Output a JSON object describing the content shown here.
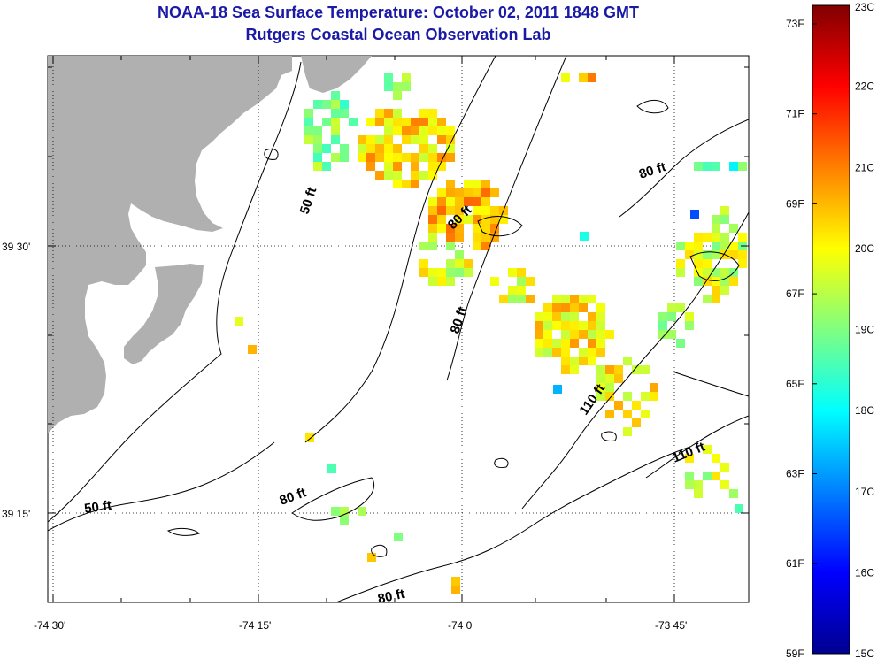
{
  "header": {
    "title_line1": "NOAA-18 Sea Surface Temperature:  October 02, 2011 1848 GMT",
    "title_line2": "Rutgers Coastal Ocean Observation Lab"
  },
  "map": {
    "lon_labels": [
      "-74 30'",
      "-74 15'",
      "-74 0'",
      "-73 45'"
    ],
    "lat_labels": [
      "39 30'",
      "39 15'"
    ],
    "contour_labels": [
      "50 ft",
      "80 ft",
      "80 ft",
      "80 ft",
      "110 ft",
      "110 ft",
      "80 ft",
      "50 ft",
      "80 ft"
    ],
    "land_color": "#b0b0b0",
    "contour_color": "#000000"
  },
  "colorbar": {
    "fahrenheit_labels": [
      "73F",
      "71F",
      "69F",
      "67F",
      "65F",
      "63F",
      "61F",
      "59F"
    ],
    "celsius_labels": [
      "23C",
      "22C",
      "21C",
      "20C",
      "19C",
      "18C",
      "17C",
      "16C",
      "15C"
    ],
    "range_c": [
      15,
      23
    ],
    "colormap": "jet"
  }
}
